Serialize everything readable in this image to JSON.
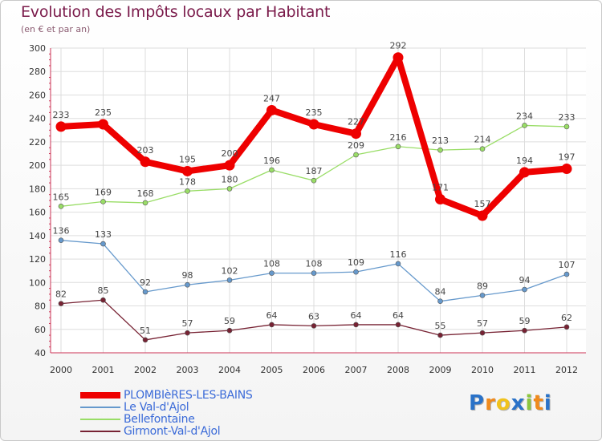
{
  "chart_data": {
    "type": "line",
    "title": "Evolution des Impôts locaux par Habitant",
    "subtitle": "(en € et par an)",
    "categories": [
      "2000",
      "2001",
      "2002",
      "2003",
      "2004",
      "2005",
      "2006",
      "2007",
      "2008",
      "2009",
      "2010",
      "2011",
      "2012"
    ],
    "ylim": [
      40,
      300
    ],
    "yticks": [
      40,
      60,
      80,
      100,
      120,
      140,
      160,
      180,
      200,
      220,
      240,
      260,
      280,
      300
    ],
    "grid": true,
    "series": [
      {
        "name": "PLOMBIèRES-LES-BAINS",
        "color": "#ee0000",
        "emphasis": true,
        "values": [
          233,
          235,
          203,
          195,
          200,
          247,
          235,
          227,
          292,
          171,
          157,
          194,
          197
        ]
      },
      {
        "name": "Le Val-d'Ajol",
        "color": "#6699cc",
        "emphasis": false,
        "values": [
          136,
          133,
          92,
          98,
          102,
          108,
          108,
          109,
          116,
          84,
          89,
          94,
          107
        ]
      },
      {
        "name": "Bellefontaine",
        "color": "#99dd66",
        "emphasis": false,
        "values": [
          165,
          169,
          168,
          178,
          180,
          196,
          187,
          209,
          216,
          213,
          214,
          234,
          233
        ]
      },
      {
        "name": "Girmont-Val-d'Ajol",
        "color": "#772233",
        "emphasis": false,
        "values": [
          82,
          85,
          51,
          57,
          59,
          64,
          63,
          64,
          64,
          55,
          57,
          59,
          62
        ]
      }
    ]
  },
  "logo": {
    "letters": [
      "P",
      "r",
      "o",
      "x",
      "i",
      "t",
      "i"
    ],
    "colors": [
      "#2a72c8",
      "#f08a1c",
      "#f0c21c",
      "#2a72c8",
      "#8cc63e",
      "#f08a1c",
      "#2a72c8"
    ]
  }
}
